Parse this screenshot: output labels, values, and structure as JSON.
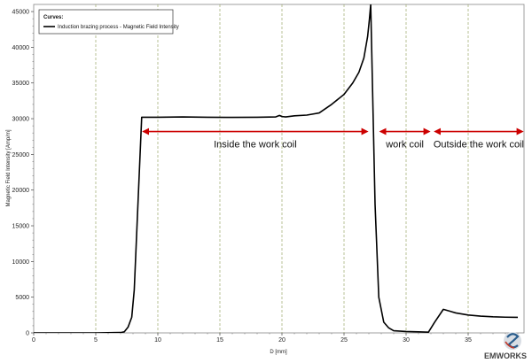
{
  "chart_data": {
    "type": "line",
    "xlabel": "D [mm]",
    "ylabel": "Magnetic Field Intensity [Amp/m]",
    "xlim": [
      0,
      39.5
    ],
    "ylim": [
      0,
      46000
    ],
    "xticks": [
      0,
      5,
      10,
      15,
      20,
      25,
      30,
      35
    ],
    "yticks": [
      0,
      5000,
      10000,
      15000,
      20000,
      25000,
      30000,
      35000,
      40000,
      45000
    ],
    "grid": "vertical dashed at major x ticks",
    "legend": {
      "title": "Curves:",
      "placement": "top-left",
      "entries": [
        "Induction brazing process - Magnetic Field Intensity"
      ]
    },
    "series": [
      {
        "name": "Induction brazing process - Magnetic Field Intensity",
        "color": "#000000",
        "x": [
          0,
          5,
          7,
          7.3,
          7.6,
          7.9,
          8.1,
          8.7,
          10,
          12,
          14,
          16,
          18,
          19.5,
          19.8,
          20,
          20.3,
          21,
          22,
          23,
          24,
          25,
          25.7,
          26.2,
          26.6,
          26.9,
          27.05,
          27.15,
          27.5,
          27.8,
          28.2,
          28.6,
          29,
          30,
          31,
          31.8,
          32.3,
          33,
          34,
          35,
          36,
          37,
          38,
          39
        ],
        "y": [
          0,
          0,
          50,
          150,
          800,
          2200,
          6000,
          30200,
          30200,
          30250,
          30200,
          30180,
          30200,
          30250,
          30450,
          30300,
          30250,
          30400,
          30500,
          30800,
          32000,
          33400,
          35000,
          36500,
          38500,
          41500,
          44000,
          46000,
          18000,
          5000,
          1500,
          700,
          300,
          200,
          150,
          100,
          1500,
          3300,
          2800,
          2500,
          2350,
          2250,
          2200,
          2180
        ]
      }
    ],
    "annotations": [
      {
        "text": "Inside the work coil",
        "x_start": 8.7,
        "x_end": 27.0,
        "y": 28200,
        "color": "#cc0000"
      },
      {
        "text": "work coil",
        "x_start": 27.8,
        "x_end": 32.0,
        "y": 28200,
        "color": "#cc0000"
      },
      {
        "text": "Outside the work coil",
        "x_start": 32.2,
        "x_end": 39.5,
        "y": 28200,
        "color": "#cc0000"
      }
    ]
  },
  "logo": {
    "text": "EMWORKS"
  }
}
